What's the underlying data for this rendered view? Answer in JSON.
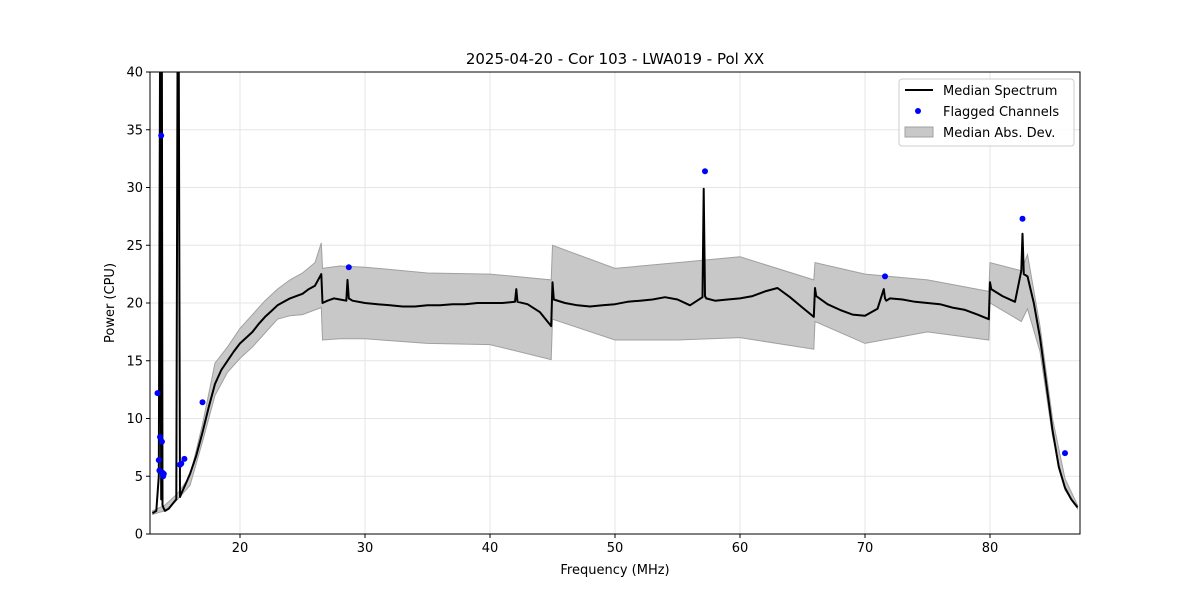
{
  "chart_data": {
    "type": "line",
    "title": "2025-04-20 - Cor 103 - LWA019 - Pol XX",
    "xlabel": "Frequency (MHz)",
    "ylabel": "Power (CPU)",
    "xlim": [
      12.8,
      87.2
    ],
    "ylim": [
      0,
      40
    ],
    "xticks": [
      20,
      30,
      40,
      50,
      60,
      70,
      80
    ],
    "yticks": [
      0,
      5,
      10,
      15,
      20,
      25,
      30,
      35,
      40
    ],
    "grid": true,
    "legend": {
      "placement": "top-right",
      "entries": [
        "Median Spectrum",
        "Flagged Channels",
        "Median Abs. Dev."
      ]
    },
    "colors": {
      "median": "#000000",
      "flagged": "#0000ff",
      "mad_fill": "#c8c8c8",
      "mad_edge": "#a0a0a0",
      "grid": "#e6e6e6"
    },
    "series": [
      {
        "name": "Median Spectrum",
        "x": [
          13.0,
          13.3,
          13.5,
          13.6,
          13.7,
          13.75,
          13.8,
          13.9,
          14.0,
          14.3,
          14.6,
          14.9,
          15.0,
          15.05,
          15.1,
          15.2,
          15.3,
          15.6,
          16.0,
          16.5,
          17.0,
          17.5,
          18.0,
          18.5,
          19.0,
          19.5,
          20.0,
          20.5,
          21.0,
          21.5,
          22.0,
          22.5,
          23.0,
          23.5,
          24.0,
          24.5,
          25.0,
          25.5,
          26.0,
          26.5,
          26.6,
          27.0,
          27.5,
          28.0,
          28.5,
          28.6,
          28.7,
          29.0,
          30.0,
          31.0,
          32.0,
          33.0,
          34.0,
          35.0,
          36.0,
          37.0,
          38.0,
          39.0,
          40.0,
          41.0,
          42.0,
          42.1,
          42.2,
          43.0,
          44.0,
          44.9,
          45.0,
          45.1,
          46.0,
          47.0,
          48.0,
          49.0,
          50.0,
          51.0,
          52.0,
          53.0,
          54.0,
          55.0,
          56.0,
          57.0,
          57.1,
          57.2,
          57.3,
          58.0,
          59.0,
          60.0,
          61.0,
          62.0,
          63.0,
          64.0,
          65.0,
          65.9,
          66.0,
          66.1,
          67.0,
          68.0,
          69.0,
          70.0,
          71.0,
          71.5,
          71.6,
          71.7,
          72.0,
          73.0,
          74.0,
          75.0,
          76.0,
          77.0,
          78.0,
          79.0,
          79.9,
          80.0,
          80.1,
          81.0,
          82.0,
          82.5,
          82.6,
          82.7,
          83.0,
          83.5,
          84.0,
          84.5,
          85.0,
          85.5,
          86.0,
          86.5,
          87.0
        ],
        "y": [
          1.8,
          2.0,
          5.0,
          40.0,
          3.0,
          40.0,
          2.5,
          2.2,
          2.0,
          2.2,
          2.6,
          3.0,
          40.0,
          40.0,
          40.0,
          3.2,
          3.5,
          4.2,
          5.2,
          6.8,
          8.8,
          11.0,
          13.0,
          14.2,
          15.0,
          15.8,
          16.5,
          17.0,
          17.5,
          18.2,
          18.8,
          19.3,
          19.8,
          20.1,
          20.4,
          20.6,
          20.8,
          21.2,
          21.5,
          22.5,
          20.0,
          20.2,
          20.4,
          20.3,
          20.2,
          22.0,
          20.4,
          20.2,
          20.0,
          19.9,
          19.8,
          19.7,
          19.7,
          19.8,
          19.8,
          19.9,
          19.9,
          20.0,
          20.0,
          20.0,
          20.1,
          21.2,
          20.1,
          19.9,
          19.2,
          18.0,
          21.8,
          20.3,
          20.0,
          19.8,
          19.7,
          19.8,
          19.9,
          20.1,
          20.2,
          20.3,
          20.5,
          20.3,
          19.8,
          20.5,
          29.9,
          20.6,
          20.4,
          20.2,
          20.3,
          20.4,
          20.6,
          21.0,
          21.3,
          20.5,
          19.6,
          18.8,
          21.3,
          20.6,
          19.9,
          19.4,
          19.0,
          18.9,
          19.5,
          21.2,
          20.4,
          20.2,
          20.4,
          20.3,
          20.1,
          20.0,
          19.9,
          19.6,
          19.4,
          19.0,
          18.6,
          21.8,
          21.2,
          20.6,
          20.1,
          22.8,
          26.0,
          22.5,
          22.3,
          20.0,
          17.0,
          13.0,
          9.0,
          5.8,
          4.0,
          3.0,
          2.3
        ]
      },
      {
        "name": "Median Abs. Dev.",
        "x": [
          13.0,
          13.6,
          14.0,
          15.0,
          16.0,
          17.0,
          18.0,
          19.0,
          20.0,
          21.0,
          22.0,
          23.0,
          24.0,
          25.0,
          26.0,
          26.5,
          26.6,
          28.0,
          30.0,
          35.0,
          40.0,
          44.9,
          45.0,
          50.0,
          55.0,
          60.0,
          65.9,
          66.0,
          70.0,
          75.0,
          79.9,
          80.0,
          82.5,
          83.0,
          84.0,
          85.0,
          86.0,
          87.0
        ],
        "upper": [
          2.0,
          2.3,
          2.5,
          3.5,
          5.0,
          9.5,
          14.8,
          16.2,
          17.8,
          19.0,
          20.2,
          21.2,
          22.0,
          22.6,
          23.5,
          25.2,
          23.0,
          23.2,
          23.1,
          22.6,
          22.5,
          22.0,
          25.0,
          23.0,
          23.5,
          24.0,
          22.0,
          23.5,
          22.5,
          22.0,
          21.0,
          23.5,
          22.8,
          24.2,
          18.0,
          10.0,
          4.8,
          2.5
        ],
        "lower": [
          1.7,
          1.9,
          2.0,
          3.0,
          4.2,
          8.0,
          12.0,
          14.0,
          15.2,
          16.2,
          17.4,
          18.6,
          18.9,
          19.0,
          19.4,
          19.6,
          16.8,
          16.9,
          16.9,
          16.5,
          16.4,
          15.1,
          18.6,
          16.8,
          16.8,
          17.0,
          16.0,
          18.4,
          16.5,
          17.5,
          16.8,
          20.0,
          18.4,
          19.5,
          15.8,
          8.5,
          3.8,
          2.2
        ]
      },
      {
        "name": "Flagged Channels",
        "points": [
          [
            13.4,
            12.2
          ],
          [
            13.5,
            6.4
          ],
          [
            13.55,
            5.5
          ],
          [
            13.6,
            8.4
          ],
          [
            13.7,
            34.5
          ],
          [
            13.75,
            8.0
          ],
          [
            13.8,
            5.3
          ],
          [
            13.85,
            5.0
          ],
          [
            13.9,
            5.2
          ],
          [
            15.2,
            6.0
          ],
          [
            15.3,
            6.1
          ],
          [
            15.55,
            6.5
          ],
          [
            17.0,
            11.4
          ],
          [
            28.7,
            23.1
          ],
          [
            57.2,
            31.4
          ],
          [
            71.6,
            22.3
          ],
          [
            82.6,
            27.3
          ],
          [
            86.0,
            7.0
          ]
        ]
      }
    ]
  }
}
